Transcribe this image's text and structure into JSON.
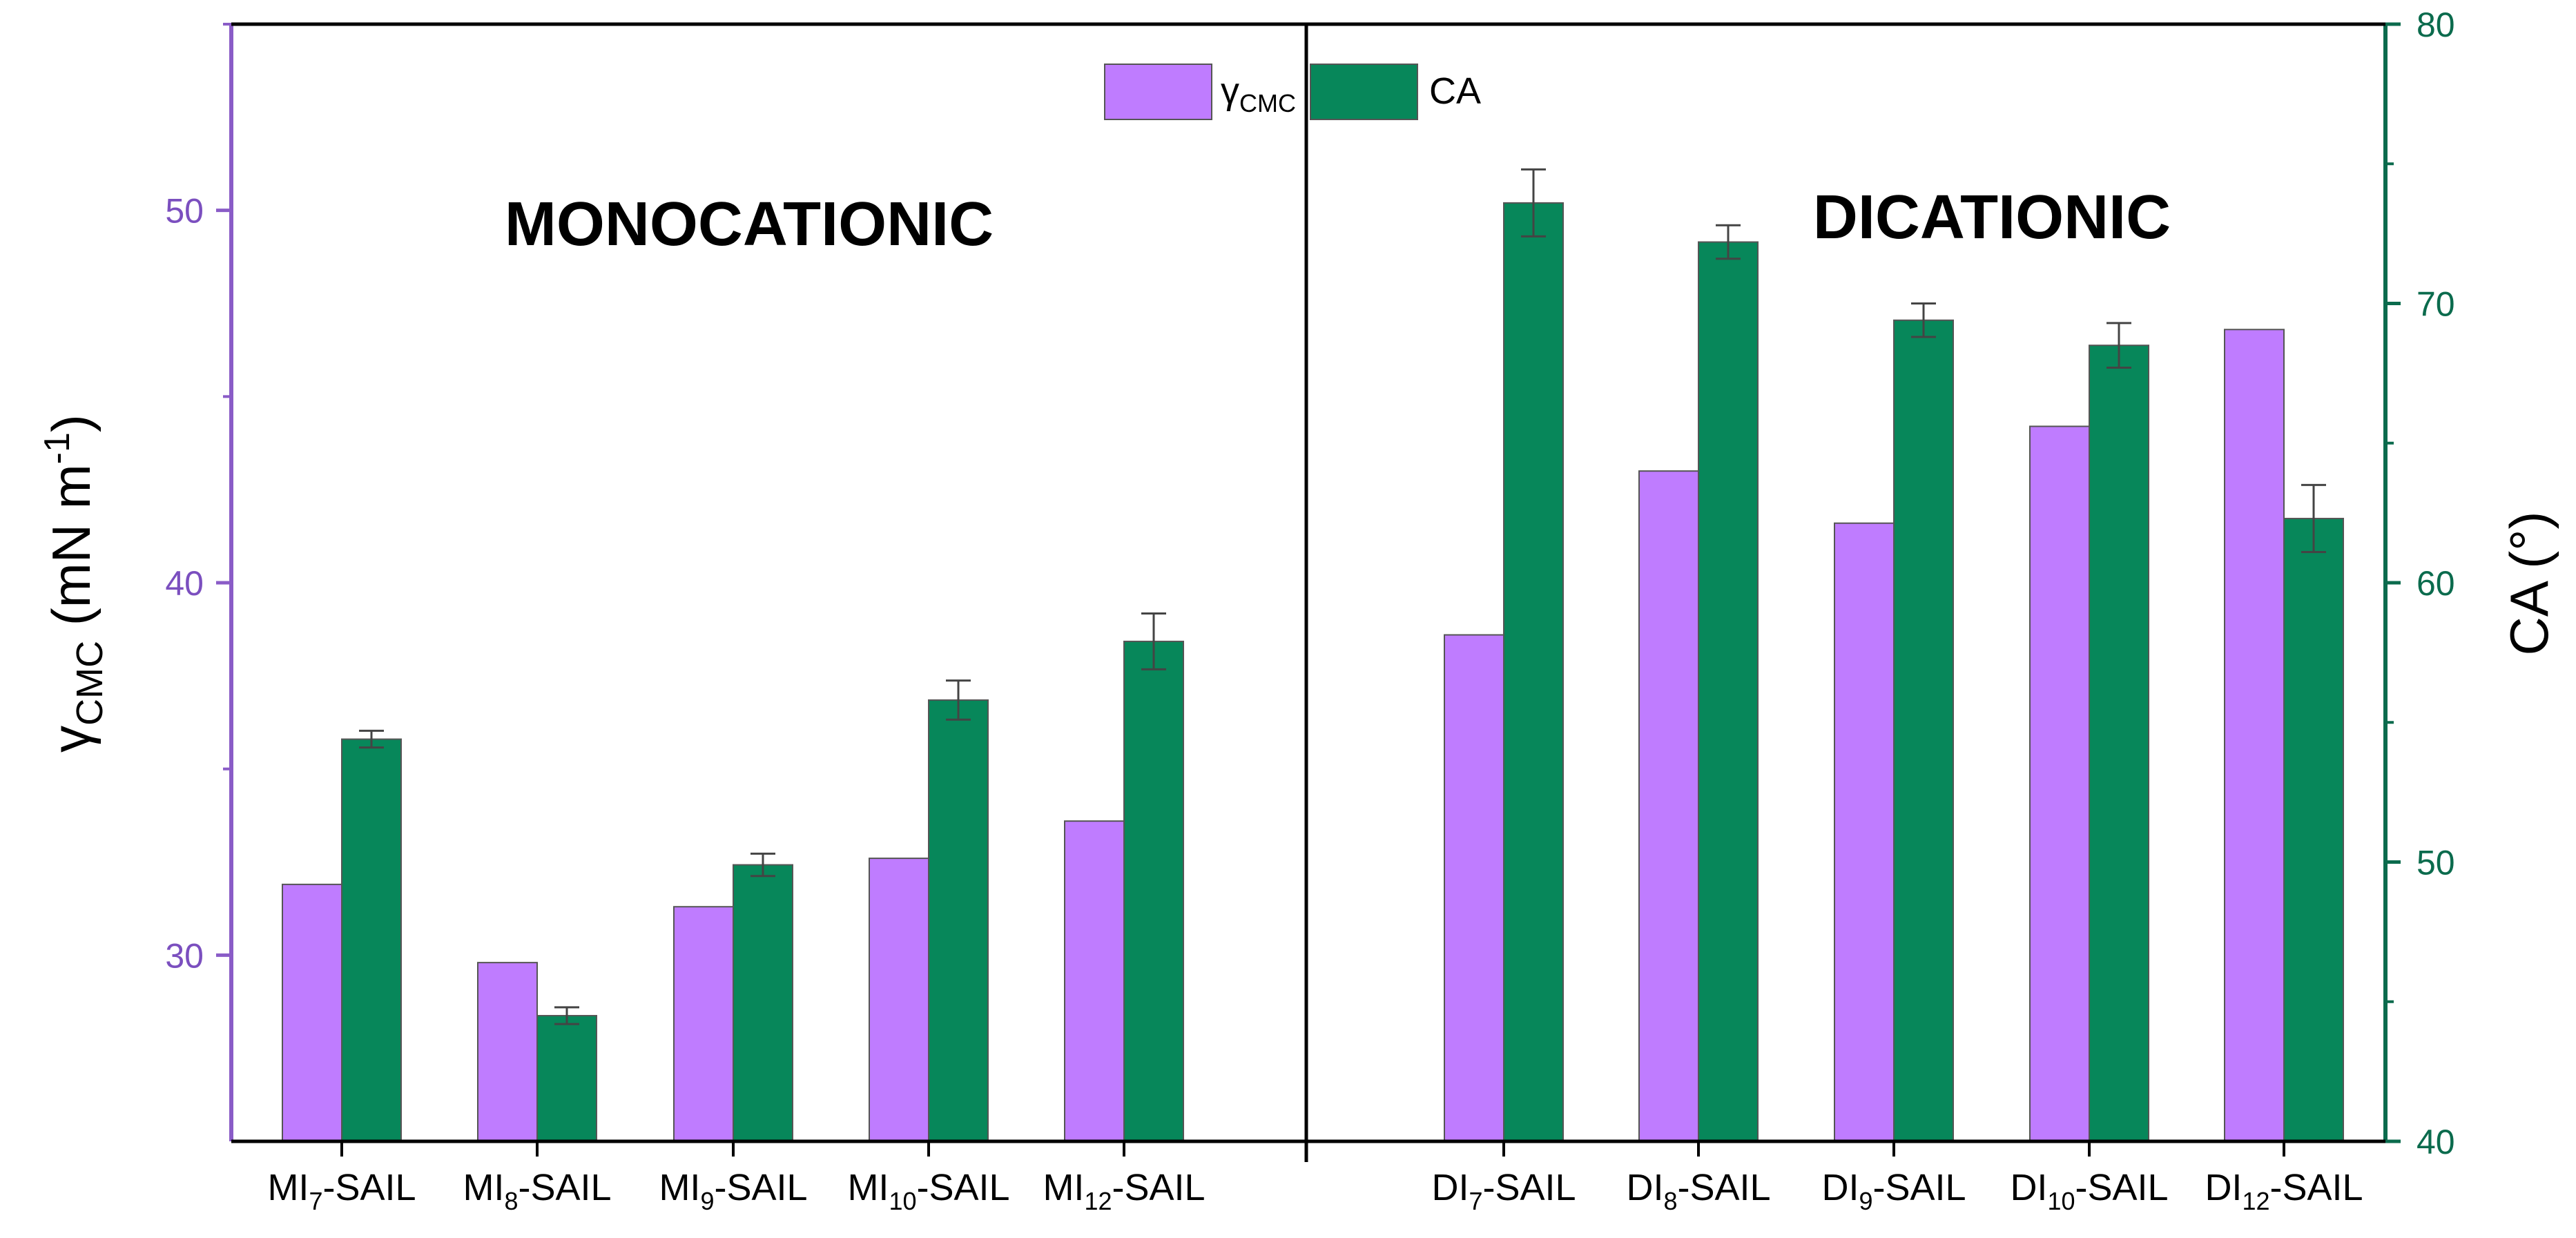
{
  "chart_data": {
    "type": "bar",
    "title": "",
    "categories": [
      {
        "base": "MI",
        "sub": "7",
        "suffix": "-SAIL"
      },
      {
        "base": "MI",
        "sub": "8",
        "suffix": "-SAIL"
      },
      {
        "base": "MI",
        "sub": "9",
        "suffix": "-SAIL"
      },
      {
        "base": "MI",
        "sub": "10",
        "suffix": "-SAIL"
      },
      {
        "base": "MI",
        "sub": "12",
        "suffix": "-SAIL"
      },
      {
        "base": "DI",
        "sub": "7",
        "suffix": "-SAIL"
      },
      {
        "base": "DI",
        "sub": "8",
        "suffix": "-SAIL"
      },
      {
        "base": "DI",
        "sub": "9",
        "suffix": "-SAIL"
      },
      {
        "base": "DI",
        "sub": "10",
        "suffix": "-SAIL"
      },
      {
        "base": "DI",
        "sub": "12",
        "suffix": "-SAIL"
      }
    ],
    "series": [
      {
        "name": "γCMC",
        "legend_base": "γ",
        "legend_sub": "CMC",
        "axis": "left",
        "color": "#bf7cff",
        "values": [
          31.9,
          29.8,
          31.3,
          32.6,
          33.6,
          38.6,
          43.0,
          41.6,
          44.2,
          46.8
        ]
      },
      {
        "name": "CA",
        "axis": "right",
        "color": "#07875a",
        "values": [
          54.4,
          44.5,
          49.9,
          55.8,
          57.9,
          73.6,
          72.2,
          69.4,
          68.5,
          62.3
        ],
        "errors": [
          0.3,
          0.3,
          0.4,
          0.7,
          1.0,
          1.2,
          0.6,
          0.6,
          0.8,
          1.2
        ]
      }
    ],
    "group_labels": [
      "MONOCATIONIC",
      "DICATIONIC"
    ],
    "y_left": {
      "label_base": "γ",
      "label_sub": "CMC",
      "label_rest": " (mN m",
      "label_sup": "-1",
      "label_close": ")",
      "ylim": [
        25,
        55
      ],
      "ticks": [
        30,
        40,
        50
      ],
      "color": "#7b4fbf"
    },
    "y_right": {
      "label": "CA (°)",
      "ylim": [
        40,
        80
      ],
      "ticks": [
        40,
        50,
        60,
        70,
        80
      ],
      "color": "#0b6b4d"
    },
    "legend_position": "top-center",
    "grid": false
  }
}
